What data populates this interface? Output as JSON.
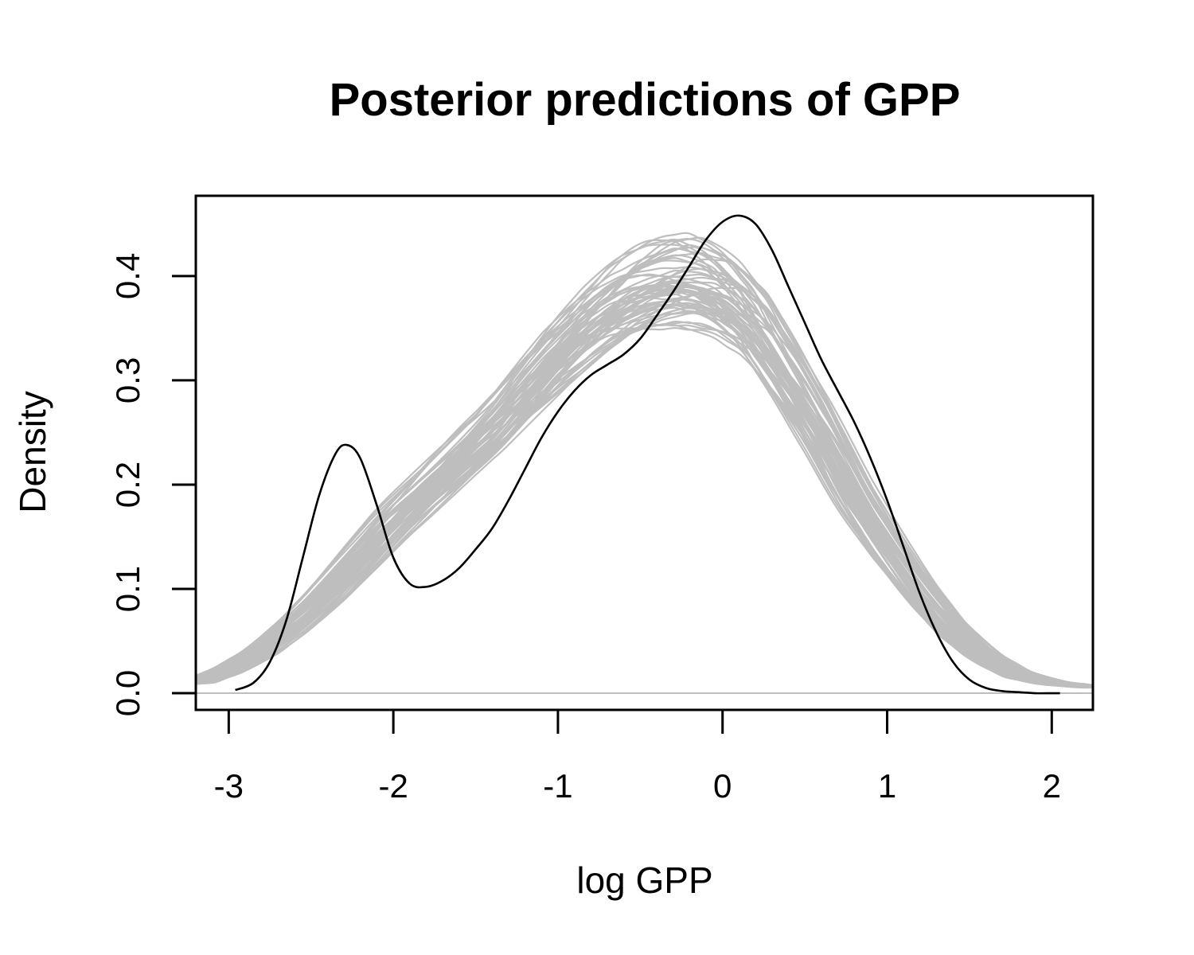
{
  "chart_data": {
    "type": "line",
    "title": "Posterior predictions of GPP",
    "xlabel": "log GPP",
    "ylabel": "Density",
    "xlim": [
      -3.2,
      2.25
    ],
    "ylim": [
      -0.016,
      0.477
    ],
    "x_ticks": [
      -3,
      -2,
      -1,
      0,
      1,
      2
    ],
    "x_tick_labels": [
      "-3",
      "-2",
      "-1",
      "0",
      "1",
      "2"
    ],
    "y_ticks": [
      0.0,
      0.1,
      0.2,
      0.3,
      0.4
    ],
    "y_tick_labels": [
      "0.0",
      "0.1",
      "0.2",
      "0.3",
      "0.4"
    ],
    "grid": false,
    "legend": "none",
    "colors": {
      "observed": "#000000",
      "posterior": "#bebebe",
      "baseline": "#bebebe"
    },
    "observed": {
      "x": [
        -2.96,
        -2.85,
        -2.75,
        -2.65,
        -2.55,
        -2.45,
        -2.35,
        -2.28,
        -2.2,
        -2.1,
        -2.0,
        -1.9,
        -1.8,
        -1.7,
        -1.6,
        -1.5,
        -1.4,
        -1.3,
        -1.2,
        -1.1,
        -1.0,
        -0.9,
        -0.8,
        -0.7,
        -0.6,
        -0.5,
        -0.4,
        -0.3,
        -0.2,
        -0.1,
        0.0,
        0.1,
        0.2,
        0.3,
        0.4,
        0.5,
        0.6,
        0.7,
        0.8,
        0.9,
        1.0,
        1.1,
        1.2,
        1.3,
        1.4,
        1.5,
        1.6,
        1.7,
        1.8,
        1.9,
        2.0,
        2.05
      ],
      "y": [
        0.003,
        0.01,
        0.03,
        0.07,
        0.13,
        0.19,
        0.23,
        0.238,
        0.225,
        0.18,
        0.13,
        0.105,
        0.102,
        0.108,
        0.12,
        0.138,
        0.158,
        0.185,
        0.215,
        0.245,
        0.27,
        0.29,
        0.305,
        0.315,
        0.325,
        0.34,
        0.362,
        0.385,
        0.41,
        0.435,
        0.452,
        0.458,
        0.45,
        0.425,
        0.39,
        0.355,
        0.32,
        0.29,
        0.26,
        0.225,
        0.185,
        0.14,
        0.095,
        0.058,
        0.03,
        0.013,
        0.005,
        0.002,
        0.001,
        0.0,
        0.0,
        0.0
      ]
    },
    "posterior_mean": {
      "x": [
        -3.2,
        -3.0,
        -2.8,
        -2.6,
        -2.4,
        -2.2,
        -2.0,
        -1.8,
        -1.6,
        -1.4,
        -1.2,
        -1.0,
        -0.8,
        -0.6,
        -0.4,
        -0.2,
        0.0,
        0.2,
        0.4,
        0.6,
        0.8,
        1.0,
        1.2,
        1.4,
        1.6,
        1.8,
        2.0,
        2.25
      ],
      "y": [
        0.01,
        0.022,
        0.04,
        0.065,
        0.095,
        0.13,
        0.165,
        0.195,
        0.225,
        0.255,
        0.29,
        0.325,
        0.355,
        0.38,
        0.395,
        0.4,
        0.39,
        0.36,
        0.31,
        0.255,
        0.195,
        0.145,
        0.1,
        0.062,
        0.035,
        0.018,
        0.01,
        0.006
      ]
    },
    "posterior_draws": 60,
    "baseline_y": 0.0
  }
}
